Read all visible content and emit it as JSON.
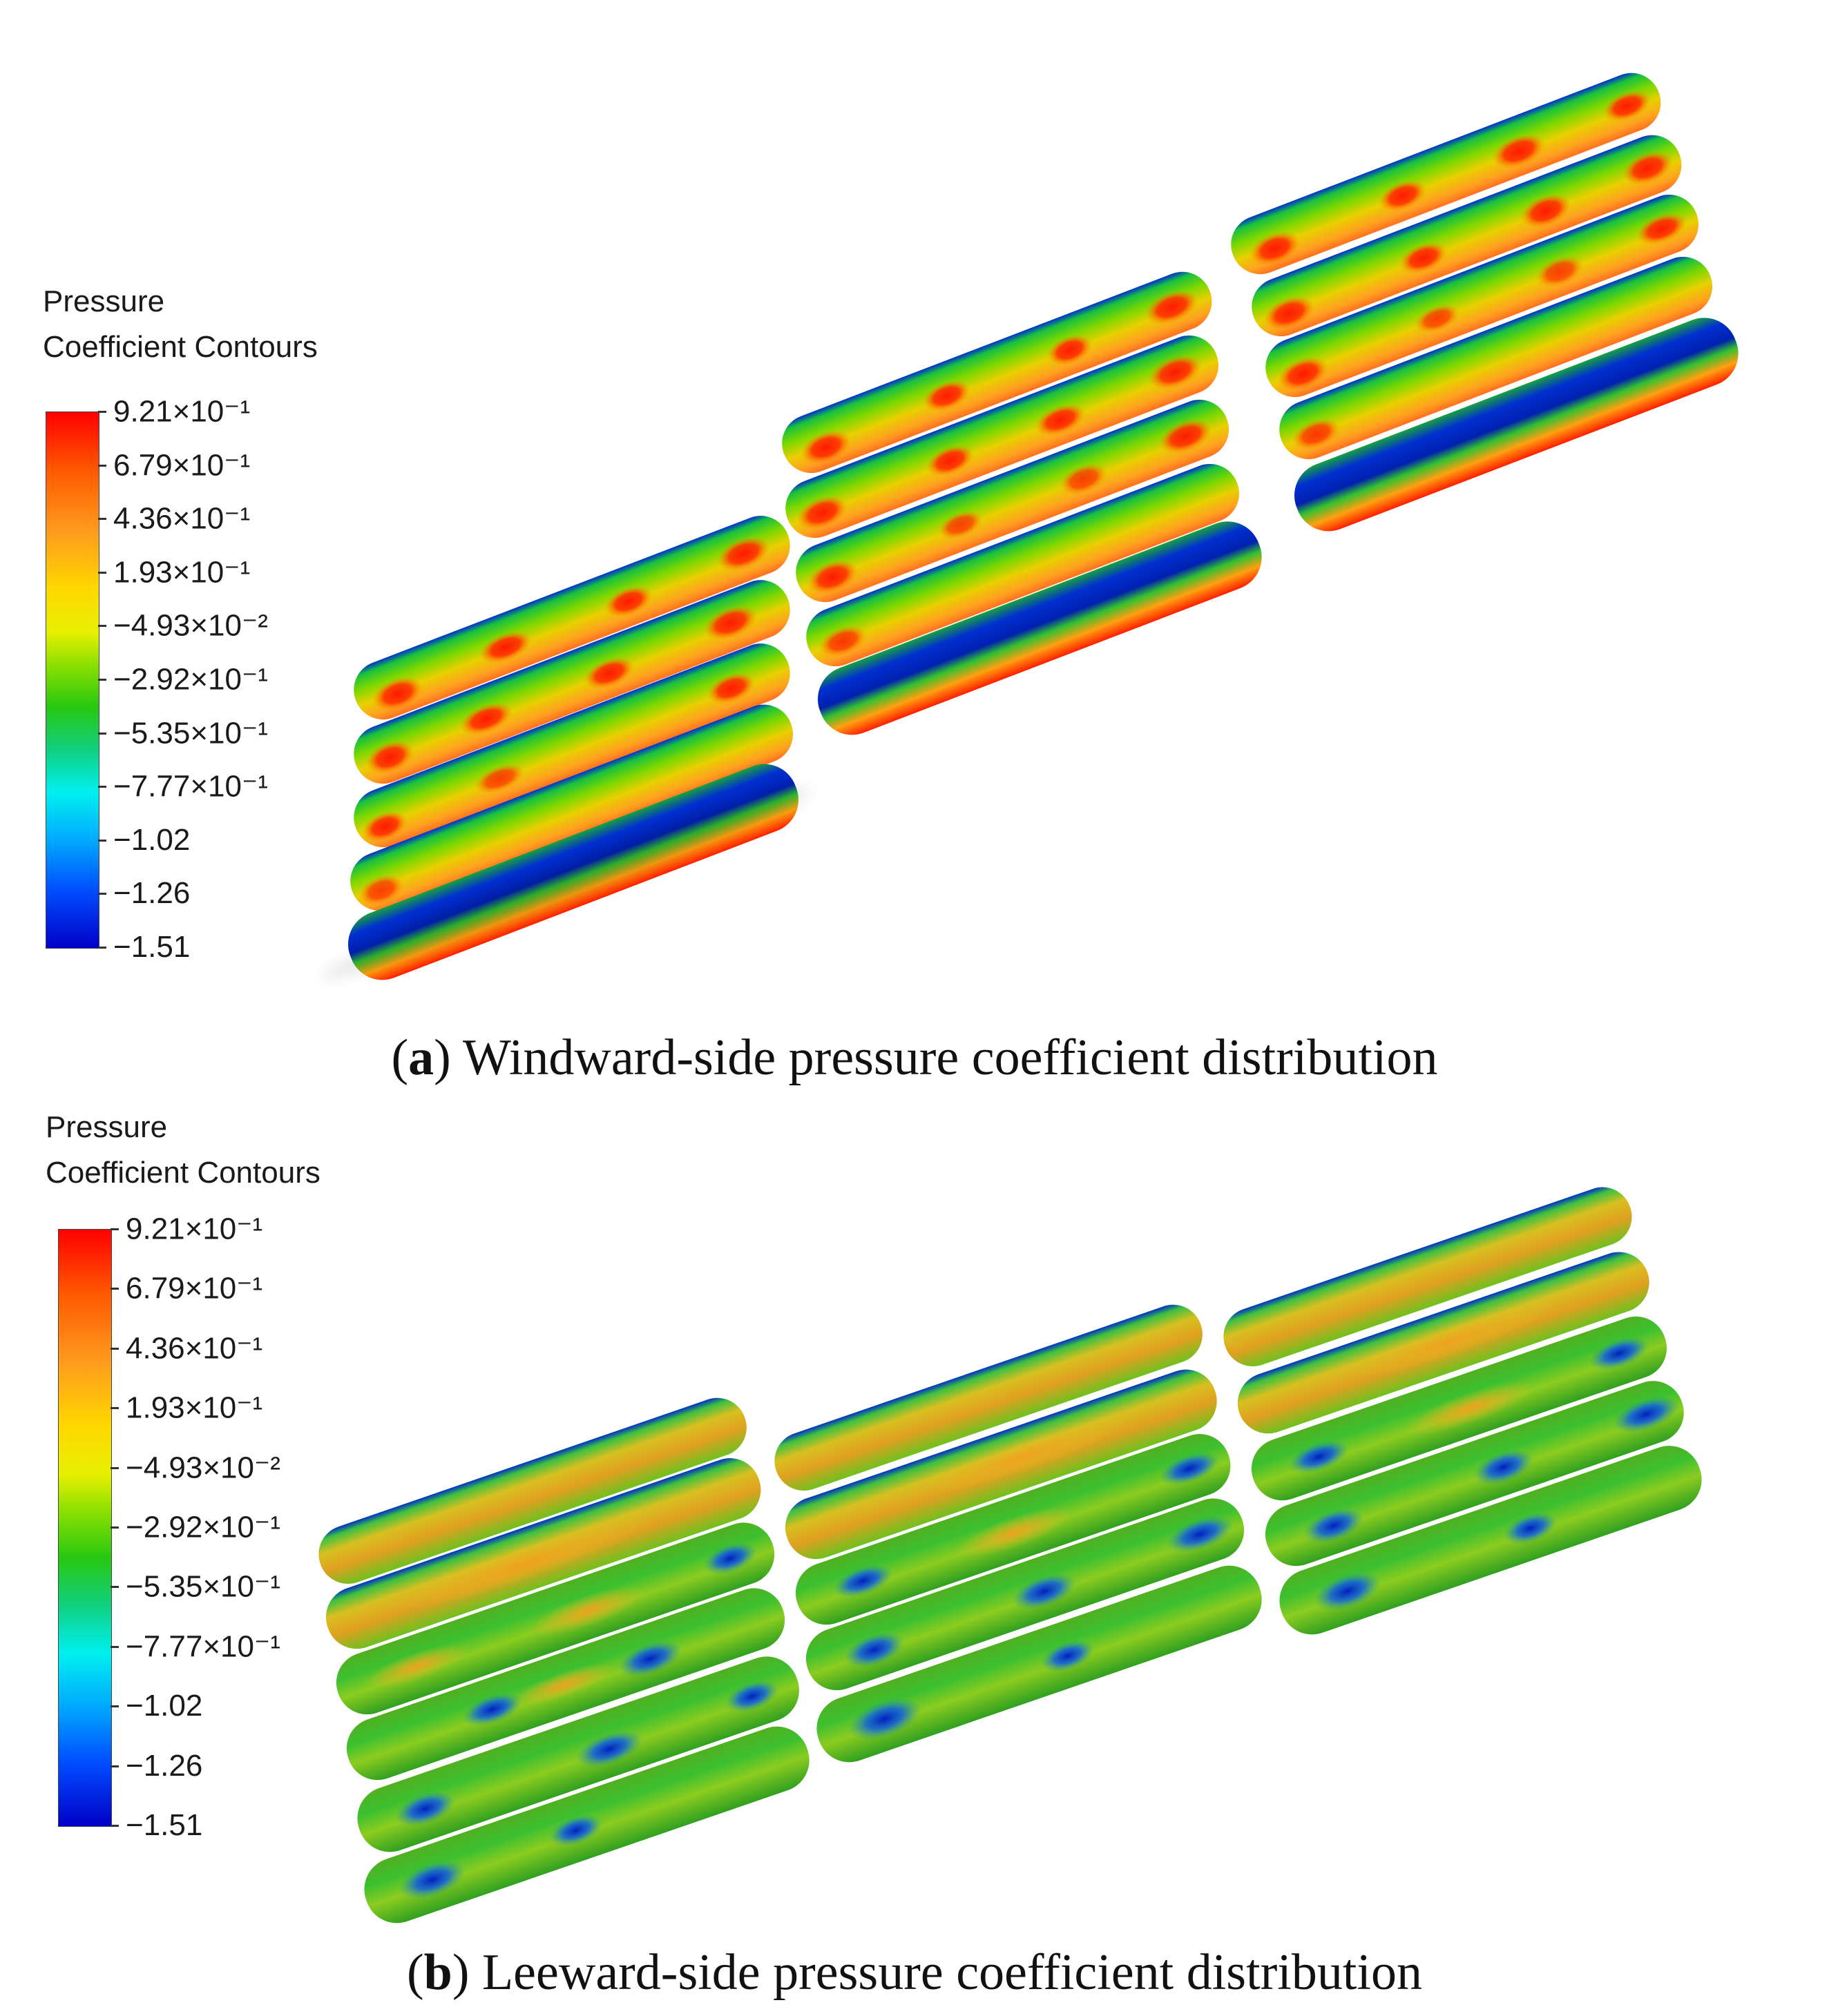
{
  "panels": [
    {
      "id": "a",
      "legend": {
        "title_line1": "Pressure",
        "title_line2": "Coefficient Contours",
        "ticks": [
          "9.21×10⁻¹",
          "6.79×10⁻¹",
          "4.36×10⁻¹",
          "1.93×10⁻¹",
          "−4.93×10⁻²",
          "−2.92×10⁻¹",
          "−5.35×10⁻¹",
          "−7.77×10⁻¹",
          "−1.02",
          "−1.26",
          "−1.51"
        ]
      },
      "caption_letter": "a",
      "caption_text": " Windward-side pressure coefficient distribution"
    },
    {
      "id": "b",
      "legend": {
        "title_line1": "Pressure",
        "title_line2": "Coefficient Contours",
        "ticks": [
          "9.21×10⁻¹",
          "6.79×10⁻¹",
          "4.36×10⁻¹",
          "1.93×10⁻¹",
          "−4.93×10⁻²",
          "−2.92×10⁻¹",
          "−5.35×10⁻¹",
          "−7.77×10⁻¹",
          "−1.02",
          "−1.26",
          "−1.51"
        ]
      },
      "caption_letter": "b",
      "caption_text": " Leeward-side pressure coefficient distribution"
    }
  ],
  "colors": {
    "max": "#ff0000",
    "mid_high": "#ff9a1e",
    "mid": "#e8f000",
    "green": "#28c810",
    "cyan": "#00f0f0",
    "min": "#0000c8"
  }
}
